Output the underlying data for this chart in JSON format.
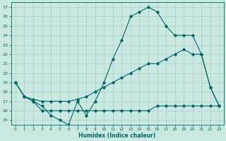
{
  "xlabel": "Humidex (Indice chaleur)",
  "background_color": "#c8e8e0",
  "grid_color": "#a8ccc8",
  "line_color": "#006868",
  "xlim": [
    -0.5,
    23.5
  ],
  "ylim": [
    14.5,
    27.5
  ],
  "xticks": [
    0,
    1,
    2,
    3,
    4,
    5,
    6,
    7,
    8,
    9,
    10,
    11,
    12,
    13,
    14,
    15,
    16,
    17,
    18,
    19,
    20,
    21,
    22,
    23
  ],
  "yticks": [
    15,
    16,
    17,
    18,
    19,
    20,
    21,
    22,
    23,
    24,
    25,
    26,
    27
  ],
  "line1": [
    19,
    17.5,
    17,
    16.5,
    15.5,
    15,
    14.5,
    17,
    15.5,
    17,
    19,
    21.5,
    23.5,
    26,
    26.5,
    27,
    26.5,
    25,
    24,
    24,
    24,
    22,
    18.5,
    16.5
  ],
  "line2": [
    19,
    17.5,
    17,
    16,
    16,
    16,
    16,
    16,
    16,
    16,
    16,
    16,
    16,
    16,
    16,
    16,
    16.5,
    16.5,
    16.5,
    16.5,
    16.5,
    16.5,
    16.5,
    16.5
  ],
  "line3": [
    19,
    17.5,
    17.2,
    17,
    17,
    17,
    17,
    17.2,
    17.5,
    18,
    18.5,
    19,
    19.5,
    20,
    20.5,
    21,
    21,
    21.5,
    22,
    22.5,
    22,
    22,
    18.5,
    16.5
  ]
}
